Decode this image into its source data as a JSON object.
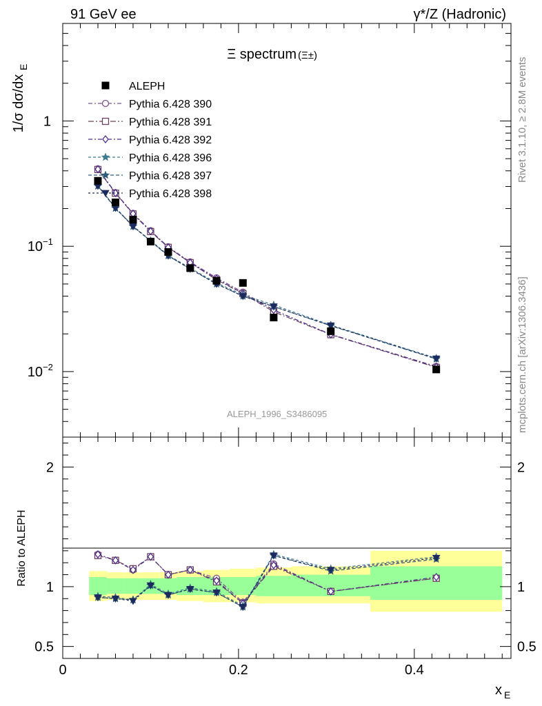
{
  "header": {
    "left": "91 GeV ee",
    "right": "γ*/Z (Hadronic)"
  },
  "side_labels": {
    "top": "Rivet 3.1.10, ≥ 2.8M events",
    "bottom": "mcplots.cern.ch [arXiv:1306.3436]"
  },
  "analysis_id": "ALEPH_1996_S3486095",
  "chart_data": [
    {
      "type": "scatter",
      "panel": "main",
      "title": "Ξ spectrum",
      "title_suffix": "(Ξ±)",
      "ylabel": "1/σ dσ/dx",
      "ylabel_sub": "E",
      "yscale": "log",
      "ylim": [
        0.003,
        6
      ],
      "xlim": [
        0,
        0.51
      ],
      "y_tick_labels": [
        "1",
        "10",
        "10"
      ],
      "y_tick_exps": [
        "",
        "−1",
        "−2"
      ],
      "legend_position": "top-left",
      "data": {
        "name": "ALEPH",
        "x": [
          0.04,
          0.06,
          0.08,
          0.1,
          0.12,
          0.145,
          0.175,
          0.205,
          0.24,
          0.305,
          0.425
        ],
        "y": [
          0.333,
          0.224,
          0.163,
          0.109,
          0.09,
          0.067,
          0.053,
          0.051,
          0.027,
          0.021,
          0.0104
        ]
      },
      "series": [
        {
          "name": "Pythia 6.428 390",
          "color": "#7b4f8e",
          "marker": "circle-open",
          "x": [
            0.04,
            0.06,
            0.08,
            0.1,
            0.12,
            0.145,
            0.175,
            0.205,
            0.24,
            0.305,
            0.425
          ],
          "y": [
            0.415,
            0.268,
            0.183,
            0.133,
            0.099,
            0.075,
            0.056,
            0.043,
            0.031,
            0.0198,
            0.011
          ]
        },
        {
          "name": "Pythia 6.428 391",
          "color": "#6d3f5e",
          "marker": "square-open",
          "x": [
            0.04,
            0.06,
            0.08,
            0.1,
            0.12,
            0.145,
            0.175,
            0.205,
            0.24,
            0.305,
            0.425
          ],
          "y": [
            0.41,
            0.265,
            0.181,
            0.131,
            0.098,
            0.074,
            0.054,
            0.042,
            0.03,
            0.0197,
            0.0108
          ]
        },
        {
          "name": "Pythia 6.428 392",
          "color": "#4a2e8a",
          "marker": "diamond-open",
          "x": [
            0.04,
            0.06,
            0.08,
            0.1,
            0.12,
            0.145,
            0.175,
            0.205,
            0.24,
            0.305,
            0.425
          ],
          "y": [
            0.412,
            0.266,
            0.182,
            0.132,
            0.098,
            0.074,
            0.055,
            0.042,
            0.031,
            0.0198,
            0.0109
          ]
        },
        {
          "name": "Pythia 6.428 396",
          "color": "#3f7a8e",
          "marker": "star",
          "x": [
            0.04,
            0.06,
            0.08,
            0.1,
            0.12,
            0.145,
            0.175,
            0.205,
            0.24,
            0.305,
            0.425
          ],
          "y": [
            0.305,
            0.203,
            0.145,
            0.111,
            0.085,
            0.067,
            0.051,
            0.041,
            0.034,
            0.0235,
            0.0128
          ]
        },
        {
          "name": "Pythia 6.428 397",
          "color": "#2e5c7a",
          "marker": "star",
          "x": [
            0.04,
            0.06,
            0.08,
            0.1,
            0.12,
            0.145,
            0.175,
            0.205,
            0.24,
            0.305,
            0.425
          ],
          "y": [
            0.302,
            0.201,
            0.144,
            0.11,
            0.084,
            0.066,
            0.05,
            0.04,
            0.033,
            0.0232,
            0.0126
          ]
        },
        {
          "name": "Pythia 6.428 398",
          "color": "#1d2a5e",
          "marker": "triangle-down",
          "x": [
            0.04,
            0.06,
            0.08,
            0.1,
            0.12,
            0.145,
            0.175,
            0.205,
            0.24,
            0.305,
            0.425
          ],
          "y": [
            0.303,
            0.202,
            0.144,
            0.11,
            0.084,
            0.066,
            0.05,
            0.04,
            0.033,
            0.0233,
            0.0127
          ]
        }
      ]
    },
    {
      "type": "line",
      "panel": "ratio",
      "ylabel": "Ratio to ALEPH",
      "xlabel": "x",
      "xlabel_sub": "E",
      "ylim": [
        0.4,
        2.25
      ],
      "xlim": [
        0,
        0.51
      ],
      "y_tick_labels": [
        "0.5",
        "1",
        "2"
      ],
      "x_tick_labels": [
        "0",
        "0.2",
        "0.4"
      ],
      "bands": [
        {
          "x0": 0.03,
          "x1": 0.05,
          "yellow": [
            0.88,
            1.13
          ],
          "green": [
            0.93,
            1.08
          ]
        },
        {
          "x0": 0.05,
          "x1": 0.07,
          "yellow": [
            0.89,
            1.12
          ],
          "green": [
            0.94,
            1.07
          ]
        },
        {
          "x0": 0.07,
          "x1": 0.09,
          "yellow": [
            0.89,
            1.12
          ],
          "green": [
            0.94,
            1.07
          ]
        },
        {
          "x0": 0.09,
          "x1": 0.11,
          "yellow": [
            0.89,
            1.12
          ],
          "green": [
            0.94,
            1.07
          ]
        },
        {
          "x0": 0.11,
          "x1": 0.13,
          "yellow": [
            0.89,
            1.12
          ],
          "green": [
            0.94,
            1.07
          ]
        },
        {
          "x0": 0.13,
          "x1": 0.16,
          "yellow": [
            0.88,
            1.13
          ],
          "green": [
            0.93,
            1.08
          ]
        },
        {
          "x0": 0.16,
          "x1": 0.19,
          "yellow": [
            0.87,
            1.14
          ],
          "green": [
            0.93,
            1.08
          ]
        },
        {
          "x0": 0.19,
          "x1": 0.22,
          "yellow": [
            0.87,
            1.15
          ],
          "green": [
            0.93,
            1.08
          ]
        },
        {
          "x0": 0.22,
          "x1": 0.26,
          "yellow": [
            0.86,
            1.16
          ],
          "green": [
            0.92,
            1.09
          ]
        },
        {
          "x0": 0.26,
          "x1": 0.35,
          "yellow": [
            0.86,
            1.17
          ],
          "green": [
            0.92,
            1.1
          ]
        },
        {
          "x0": 0.35,
          "x1": 0.5,
          "yellow": [
            0.79,
            1.3
          ],
          "green": [
            0.89,
            1.17
          ]
        }
      ],
      "series": [
        {
          "name": "Pythia 6.428 390",
          "y": [
            1.27,
            1.22,
            1.14,
            1.25,
            1.1,
            1.14,
            1.07,
            0.87,
            1.19,
            0.96,
            1.07
          ]
        },
        {
          "name": "Pythia 6.428 391",
          "y": [
            1.26,
            1.22,
            1.15,
            1.25,
            1.1,
            1.14,
            1.04,
            0.86,
            1.17,
            0.96,
            1.07
          ]
        },
        {
          "name": "Pythia 6.428 392",
          "y": [
            1.27,
            1.22,
            1.14,
            1.25,
            1.1,
            1.14,
            1.05,
            0.86,
            1.18,
            0.96,
            1.08
          ]
        },
        {
          "name": "Pythia 6.428 396",
          "y": [
            0.92,
            0.91,
            0.89,
            1.02,
            0.94,
            0.99,
            0.96,
            0.84,
            1.27,
            1.15,
            1.25
          ]
        },
        {
          "name": "Pythia 6.428 397",
          "y": [
            0.91,
            0.9,
            0.89,
            1.01,
            0.93,
            0.98,
            0.95,
            0.83,
            1.26,
            1.13,
            1.23
          ]
        },
        {
          "name": "Pythia 6.428 398",
          "y": [
            0.91,
            0.9,
            0.88,
            1.01,
            0.93,
            0.98,
            0.95,
            0.83,
            1.26,
            1.14,
            1.24
          ]
        }
      ]
    }
  ]
}
